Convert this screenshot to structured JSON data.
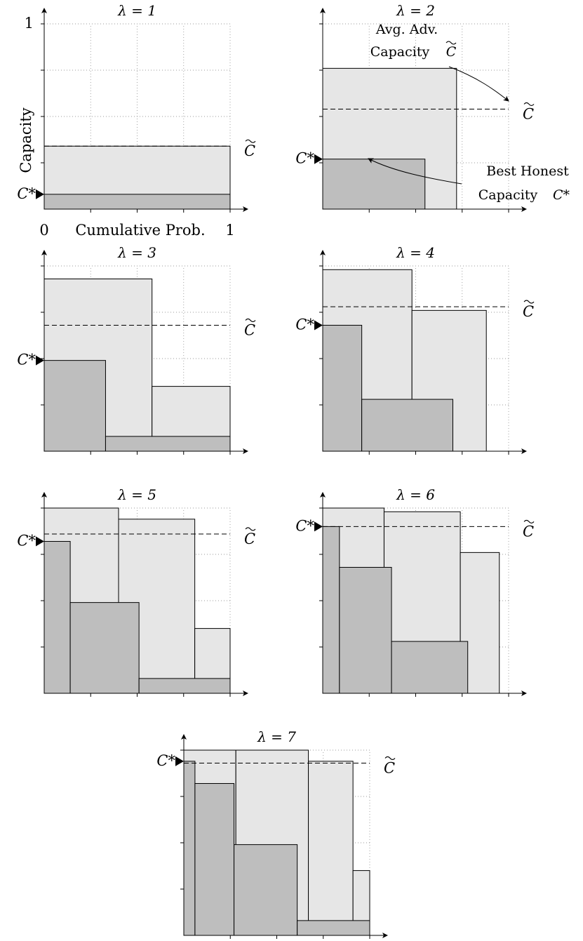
{
  "labels": {
    "ylabel": "Capacity",
    "xlabel": "Cumulative Prob.",
    "x0": "0",
    "x1": "1",
    "y1": "1",
    "ctilde": "C",
    "cstar": "C*",
    "avg_line1": "Avg. Adv.",
    "avg_line2": "Capacity",
    "best_line1": "Best Honest",
    "best_line2": "Capacity"
  },
  "chart_data": [
    {
      "type": "bar",
      "title": "λ = 1",
      "xlim": [
        0,
        1
      ],
      "ylim": [
        0,
        1
      ],
      "adversarial": [
        {
          "x0": 0,
          "x1": 1,
          "y": 0.34
        }
      ],
      "honest": [
        {
          "x0": 0,
          "x1": 1,
          "y": 0.08
        }
      ],
      "c_tilde": 0.34,
      "c_star": 0.08
    },
    {
      "type": "bar",
      "title": "λ = 2",
      "xlim": [
        0,
        1
      ],
      "ylim": [
        0,
        1
      ],
      "adversarial": [
        {
          "x0": 0,
          "x1": 0.72,
          "y": 0.76
        }
      ],
      "honest": [
        {
          "x0": 0,
          "x1": 0.55,
          "y": 0.27
        }
      ],
      "c_tilde": 0.54,
      "c_star": 0.27
    },
    {
      "type": "bar",
      "title": "λ = 3",
      "xlim": [
        0,
        1
      ],
      "ylim": [
        0,
        1
      ],
      "adversarial": [
        {
          "x0": 0,
          "x1": 0.58,
          "y": 0.93
        },
        {
          "x0": 0.58,
          "x1": 1,
          "y": 0.35
        }
      ],
      "honest": [
        {
          "x0": 0,
          "x1": 0.33,
          "y": 0.49
        },
        {
          "x0": 0.33,
          "x1": 1,
          "y": 0.08
        }
      ],
      "c_tilde": 0.68,
      "c_star": 0.49
    },
    {
      "type": "bar",
      "title": "λ = 4",
      "xlim": [
        0,
        1
      ],
      "ylim": [
        0,
        1
      ],
      "adversarial": [
        {
          "x0": 0,
          "x1": 0.48,
          "y": 0.98
        },
        {
          "x0": 0.48,
          "x1": 0.88,
          "y": 0.76
        }
      ],
      "honest": [
        {
          "x0": 0,
          "x1": 0.21,
          "y": 0.68
        },
        {
          "x0": 0.21,
          "x1": 0.7,
          "y": 0.28
        }
      ],
      "c_tilde": 0.78,
      "c_star": 0.68
    },
    {
      "type": "bar",
      "title": "λ = 5",
      "xlim": [
        0,
        1
      ],
      "ylim": [
        0,
        1
      ],
      "adversarial": [
        {
          "x0": 0,
          "x1": 0.4,
          "y": 1.0
        },
        {
          "x0": 0.4,
          "x1": 0.81,
          "y": 0.94
        },
        {
          "x0": 0.81,
          "x1": 1,
          "y": 0.35
        }
      ],
      "honest": [
        {
          "x0": 0,
          "x1": 0.14,
          "y": 0.82
        },
        {
          "x0": 0.14,
          "x1": 0.51,
          "y": 0.49
        },
        {
          "x0": 0.51,
          "x1": 1,
          "y": 0.08
        }
      ],
      "c_tilde": 0.86,
      "c_star": 0.82
    },
    {
      "type": "bar",
      "title": "λ = 6",
      "xlim": [
        0,
        1
      ],
      "ylim": [
        0,
        1
      ],
      "adversarial": [
        {
          "x0": 0,
          "x1": 0.33,
          "y": 1.0
        },
        {
          "x0": 0.33,
          "x1": 0.74,
          "y": 0.98
        },
        {
          "x0": 0.74,
          "x1": 0.95,
          "y": 0.76
        }
      ],
      "honest": [
        {
          "x0": 0,
          "x1": 0.09,
          "y": 0.9
        },
        {
          "x0": 0.09,
          "x1": 0.37,
          "y": 0.68
        },
        {
          "x0": 0.37,
          "x1": 0.78,
          "y": 0.28
        }
      ],
      "c_tilde": 0.9,
      "c_star": 0.9
    },
    {
      "type": "bar",
      "title": "λ = 7",
      "xlim": [
        0,
        1
      ],
      "ylim": [
        0,
        1
      ],
      "adversarial": [
        {
          "x0": 0,
          "x1": 0.28,
          "y": 1.0
        },
        {
          "x0": 0.28,
          "x1": 0.67,
          "y": 1.0
        },
        {
          "x0": 0.67,
          "x1": 0.91,
          "y": 0.94
        },
        {
          "x0": 0.91,
          "x1": 1,
          "y": 0.35
        }
      ],
      "honest": [
        {
          "x0": 0,
          "x1": 0.06,
          "y": 0.94
        },
        {
          "x0": 0.06,
          "x1": 0.27,
          "y": 0.82
        },
        {
          "x0": 0.27,
          "x1": 0.61,
          "y": 0.49
        },
        {
          "x0": 0.61,
          "x1": 1,
          "y": 0.08
        }
      ],
      "c_tilde": 0.93,
      "c_star": 0.94
    }
  ]
}
